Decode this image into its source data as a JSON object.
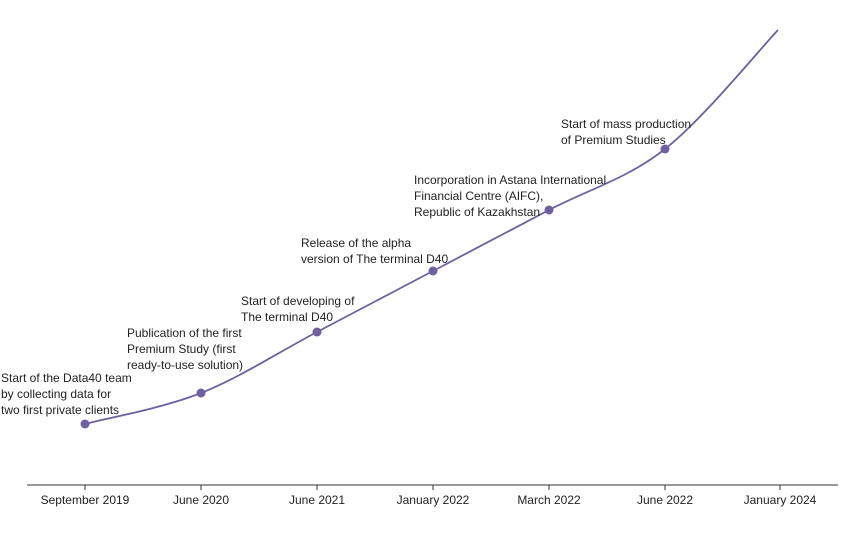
{
  "milestones": [
    {
      "date": "September 2019",
      "lines": [
        "Start of the Data40 team",
        "by collecting data for",
        "two first private clients"
      ]
    },
    {
      "date": "June 2020",
      "lines": [
        "Publication of the first",
        "Premium Study (first",
        "ready-to-use solution)"
      ]
    },
    {
      "date": "June 2021",
      "lines": [
        "Start of developing of",
        "The terminal D40"
      ]
    },
    {
      "date": "January 2022",
      "lines": [
        "Release of the alpha",
        "version of The terminal D40"
      ]
    },
    {
      "date": "March 2022",
      "lines": [
        "Incorporation in Astana International",
        "Financial Centre (AIFC),",
        "Republic of Kazakhstan"
      ]
    },
    {
      "date": "June 2022",
      "lines": [
        "Start of mass production",
        "of Premium Studies"
      ]
    },
    {
      "date": "January 2024"
    }
  ]
}
